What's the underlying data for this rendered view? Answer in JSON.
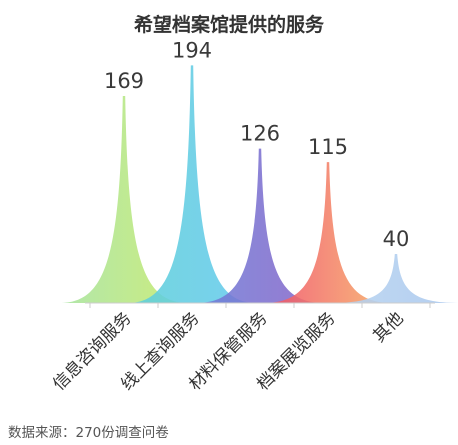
{
  "chart_data": {
    "type": "area",
    "title": "希望档案馆提供的服务",
    "categories": [
      "信息咨询服务",
      "线上查询服务",
      "材料保管服务",
      "档案展览服务",
      "其他"
    ],
    "values": [
      169,
      194,
      126,
      115,
      40
    ],
    "ylim": [
      0,
      200
    ],
    "grid": false,
    "legend": "none",
    "colors": [
      [
        "#a6e3a0",
        "#c6ea6a"
      ],
      [
        "#5fd0d8",
        "#66c9ef"
      ],
      [
        "#6f7fd8",
        "#8a64c8"
      ],
      [
        "#f0506a",
        "#f7b267"
      ],
      [
        "#b8d4f0",
        "#a9c7ee"
      ]
    ]
  },
  "source": "数据来源：270份调查问卷"
}
